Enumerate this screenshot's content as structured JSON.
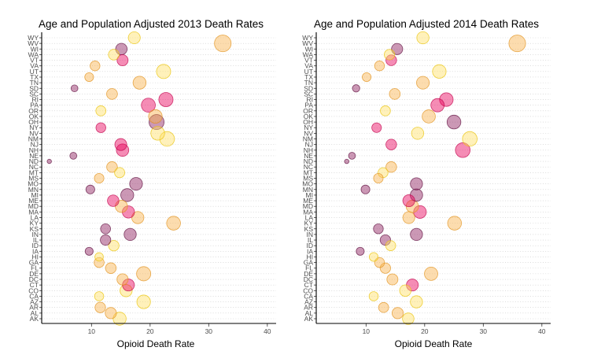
{
  "chart_data": [
    {
      "type": "scatter",
      "title": "Age and Population Adjusted 2013 Death Rates",
      "xlabel": "Opioid Death Rate",
      "ylabel": "",
      "xlim": [
        1.5,
        41.5
      ],
      "xticks": [
        10,
        20,
        30,
        40
      ],
      "grid": "dotted horizontal lines at each state",
      "legend": "none",
      "categories": [
        "AK",
        "AL",
        "AR",
        "AZ",
        "CA",
        "CO",
        "CT",
        "DC",
        "DE",
        "FL",
        "GA",
        "HI",
        "IA",
        "ID",
        "IL",
        "IN",
        "KS",
        "KY",
        "LA",
        "MA",
        "MD",
        "ME",
        "MI",
        "MN",
        "MO",
        "MS",
        "MT",
        "NC",
        "ND",
        "NE",
        "NH",
        "NJ",
        "NM",
        "NV",
        "NY",
        "OH",
        "OK",
        "OR",
        "PA",
        "RI",
        "SC",
        "SD",
        "TN",
        "TX",
        "UT",
        "VA",
        "VT",
        "WA",
        "WI",
        "WV",
        "WY"
      ],
      "points": [
        {
          "state": "AK",
          "x": 14.8,
          "size": 16.6,
          "color": "#ffe066"
        },
        {
          "state": "AL",
          "x": 13.3,
          "size": 14.3,
          "color": "#f8b24c"
        },
        {
          "state": "AR",
          "x": 11.5,
          "size": 13.4,
          "color": "#f8b24c"
        },
        {
          "state": "AZ",
          "x": 18.9,
          "size": 17.3,
          "color": "#ffe066"
        },
        {
          "state": "CA",
          "x": 11.3,
          "size": 11.7,
          "color": "#ffe066"
        },
        {
          "state": "CO",
          "x": 15.9,
          "size": 15.5,
          "color": "#ffe066"
        },
        {
          "state": "CT",
          "x": 16.3,
          "size": 15.2,
          "color": "#e8005a"
        },
        {
          "state": "DC",
          "x": 15.3,
          "size": 14.3,
          "color": "#f8b24c"
        },
        {
          "state": "DE",
          "x": 18.9,
          "size": 18.1,
          "color": "#f8b24c"
        },
        {
          "state": "FL",
          "x": 13.3,
          "size": 13.6,
          "color": "#f8b24c"
        },
        {
          "state": "GA",
          "x": 11.3,
          "size": 12.7,
          "color": "#f8b24c"
        },
        {
          "state": "HI",
          "x": 11.3,
          "size": 10.8,
          "color": "#ffe066"
        },
        {
          "state": "IA",
          "x": 9.6,
          "size": 10.2,
          "color": "#8b1a5b"
        },
        {
          "state": "ID",
          "x": 13.8,
          "size": 13.4,
          "color": "#ffe066"
        },
        {
          "state": "IL",
          "x": 12.4,
          "size": 13.3,
          "color": "#8b1a5b"
        },
        {
          "state": "IN",
          "x": 16.6,
          "size": 15.5,
          "color": "#8b1a5b"
        },
        {
          "state": "KS",
          "x": 12.4,
          "size": 12.7,
          "color": "#8b1a5b"
        },
        {
          "state": "KY",
          "x": 24.0,
          "size": 17.6,
          "color": "#f8b24c"
        },
        {
          "state": "LA",
          "x": 17.9,
          "size": 15.5,
          "color": "#f8b24c"
        },
        {
          "state": "MA",
          "x": 16.3,
          "size": 15.5,
          "color": "#e8005a"
        },
        {
          "state": "MD",
          "x": 15.1,
          "size": 15.5,
          "color": "#f8b24c"
        },
        {
          "state": "ME",
          "x": 13.7,
          "size": 14.6,
          "color": "#e8005a"
        },
        {
          "state": "MI",
          "x": 16.1,
          "size": 16.5,
          "color": "#8b1a5b"
        },
        {
          "state": "MN",
          "x": 9.8,
          "size": 11.2,
          "color": "#8b1a5b"
        },
        {
          "state": "MO",
          "x": 17.6,
          "size": 16.3,
          "color": "#8b1a5b"
        },
        {
          "state": "MS",
          "x": 11.3,
          "size": 12.2,
          "color": "#f8b24c"
        },
        {
          "state": "MT",
          "x": 14.8,
          "size": 13.0,
          "color": "#ffe066"
        },
        {
          "state": "NC",
          "x": 13.5,
          "size": 13.6,
          "color": "#f8b24c"
        },
        {
          "state": "ND",
          "x": 2.8,
          "size": 5.5,
          "color": "#8b1a5b"
        },
        {
          "state": "NE",
          "x": 6.9,
          "size": 8.8,
          "color": "#8b1a5b"
        },
        {
          "state": "NH",
          "x": 15.3,
          "size": 15.8,
          "color": "#e8005a"
        },
        {
          "state": "NJ",
          "x": 15.0,
          "size": 15.2,
          "color": "#e8005a"
        },
        {
          "state": "NM",
          "x": 22.9,
          "size": 18.7,
          "color": "#ffe066"
        },
        {
          "state": "NV",
          "x": 21.3,
          "size": 17.5,
          "color": "#ffe066"
        },
        {
          "state": "NY",
          "x": 11.6,
          "size": 12.5,
          "color": "#e8005a"
        },
        {
          "state": "OH",
          "x": 21.1,
          "size": 19.1,
          "color": "#8b1a5b"
        },
        {
          "state": "OK",
          "x": 20.9,
          "size": 17.3,
          "color": "#f8b24c"
        },
        {
          "state": "OR",
          "x": 11.6,
          "size": 12.8,
          "color": "#ffe066"
        },
        {
          "state": "PA",
          "x": 19.7,
          "size": 17.8,
          "color": "#e8005a"
        },
        {
          "state": "RI",
          "x": 22.7,
          "size": 18.1,
          "color": "#e8005a"
        },
        {
          "state": "SC",
          "x": 13.5,
          "size": 13.8,
          "color": "#f8b24c"
        },
        {
          "state": "SD",
          "x": 7.1,
          "size": 8.8,
          "color": "#8b1a5b"
        },
        {
          "state": "TN",
          "x": 18.2,
          "size": 16.5,
          "color": "#f8b24c"
        },
        {
          "state": "TX",
          "x": 9.6,
          "size": 11.2,
          "color": "#f8b24c"
        },
        {
          "state": "UT",
          "x": 22.3,
          "size": 18.1,
          "color": "#ffe066"
        },
        {
          "state": "VA",
          "x": 10.6,
          "size": 12.5,
          "color": "#f8b24c"
        },
        {
          "state": "VT",
          "x": 15.3,
          "size": 14.1,
          "color": "#e8005a"
        },
        {
          "state": "WA",
          "x": 13.8,
          "size": 13.6,
          "color": "#ffe066"
        },
        {
          "state": "WI",
          "x": 15.1,
          "size": 14.6,
          "color": "#8b1a5b"
        },
        {
          "state": "WV",
          "x": 32.4,
          "size": 21.2,
          "color": "#f8b24c"
        },
        {
          "state": "WY",
          "x": 17.3,
          "size": 15.2,
          "color": "#ffe066"
        }
      ]
    },
    {
      "type": "scatter",
      "title": "Age and Population Adjusted 2014 Death Rates",
      "xlabel": "Opioid Death Rate",
      "ylabel": "",
      "xlim": [
        1.5,
        41.5
      ],
      "xticks": [
        10,
        20,
        30,
        40
      ],
      "grid": "dotted horizontal lines at each state",
      "legend": "none",
      "categories": [
        "AK",
        "AL",
        "AR",
        "AZ",
        "CA",
        "CO",
        "CT",
        "DC",
        "DE",
        "FL",
        "GA",
        "HI",
        "IA",
        "ID",
        "IL",
        "IN",
        "KS",
        "KY",
        "LA",
        "MA",
        "MD",
        "ME",
        "MI",
        "MN",
        "MO",
        "MS",
        "MT",
        "NC",
        "ND",
        "NE",
        "NH",
        "NJ",
        "NM",
        "NV",
        "NY",
        "OH",
        "OK",
        "OR",
        "PA",
        "RI",
        "SC",
        "SD",
        "TN",
        "TX",
        "UT",
        "VA",
        "VT",
        "WA",
        "WI",
        "WV",
        "WY"
      ],
      "points": [
        {
          "state": "AK",
          "x": 17.2,
          "size": 14.6,
          "color": "#ffe066"
        },
        {
          "state": "AL",
          "x": 15.4,
          "size": 14.3,
          "color": "#f8b24c"
        },
        {
          "state": "AR",
          "x": 13.0,
          "size": 12.8,
          "color": "#f8b24c"
        },
        {
          "state": "AZ",
          "x": 18.6,
          "size": 15.5,
          "color": "#ffe066"
        },
        {
          "state": "CA",
          "x": 11.3,
          "size": 11.7,
          "color": "#ffe066"
        },
        {
          "state": "CO",
          "x": 16.7,
          "size": 14.6,
          "color": "#ffe066"
        },
        {
          "state": "CT",
          "x": 17.9,
          "size": 15.2,
          "color": "#e8005a"
        },
        {
          "state": "DC",
          "x": 14.5,
          "size": 14.1,
          "color": "#f8b24c"
        },
        {
          "state": "DE",
          "x": 21.1,
          "size": 17.0,
          "color": "#f8b24c"
        },
        {
          "state": "FL",
          "x": 13.3,
          "size": 13.3,
          "color": "#f8b24c"
        },
        {
          "state": "GA",
          "x": 12.3,
          "size": 12.7,
          "color": "#f8b24c"
        },
        {
          "state": "HI",
          "x": 11.3,
          "size": 11.2,
          "color": "#ffe066"
        },
        {
          "state": "IA",
          "x": 9.0,
          "size": 10.2,
          "color": "#8b1a5b"
        },
        {
          "state": "ID",
          "x": 14.2,
          "size": 12.8,
          "color": "#ffe066"
        },
        {
          "state": "IL",
          "x": 13.3,
          "size": 13.3,
          "color": "#8b1a5b"
        },
        {
          "state": "IN",
          "x": 18.6,
          "size": 15.5,
          "color": "#8b1a5b"
        },
        {
          "state": "KS",
          "x": 12.1,
          "size": 12.5,
          "color": "#8b1a5b"
        },
        {
          "state": "KY",
          "x": 25.1,
          "size": 17.6,
          "color": "#f8b24c"
        },
        {
          "state": "LA",
          "x": 17.3,
          "size": 15.2,
          "color": "#f8b24c"
        },
        {
          "state": "MA",
          "x": 19.2,
          "size": 16.2,
          "color": "#e8005a"
        },
        {
          "state": "MD",
          "x": 17.9,
          "size": 15.8,
          "color": "#f8b24c"
        },
        {
          "state": "ME",
          "x": 17.3,
          "size": 15.2,
          "color": "#e8005a"
        },
        {
          "state": "MI",
          "x": 18.6,
          "size": 15.8,
          "color": "#8b1a5b"
        },
        {
          "state": "MN",
          "x": 9.9,
          "size": 11.2,
          "color": "#8b1a5b"
        },
        {
          "state": "MO",
          "x": 18.6,
          "size": 15.5,
          "color": "#8b1a5b"
        },
        {
          "state": "MS",
          "x": 12.1,
          "size": 12.2,
          "color": "#f8b24c"
        },
        {
          "state": "MT",
          "x": 12.9,
          "size": 12.7,
          "color": "#ffe066"
        },
        {
          "state": "NC",
          "x": 14.3,
          "size": 13.6,
          "color": "#f8b24c"
        },
        {
          "state": "ND",
          "x": 6.7,
          "size": 5.6,
          "color": "#8b1a5b"
        },
        {
          "state": "NE",
          "x": 7.6,
          "size": 8.8,
          "color": "#8b1a5b"
        },
        {
          "state": "NH",
          "x": 26.5,
          "size": 18.7,
          "color": "#e8005a"
        },
        {
          "state": "NJ",
          "x": 14.3,
          "size": 13.6,
          "color": "#e8005a"
        },
        {
          "state": "NM",
          "x": 27.7,
          "size": 18.7,
          "color": "#ffe066"
        },
        {
          "state": "NV",
          "x": 18.8,
          "size": 15.5,
          "color": "#ffe066"
        },
        {
          "state": "NY",
          "x": 11.8,
          "size": 12.2,
          "color": "#e8005a"
        },
        {
          "state": "OH",
          "x": 25.0,
          "size": 17.6,
          "color": "#8b1a5b"
        },
        {
          "state": "OK",
          "x": 20.7,
          "size": 16.8,
          "color": "#f8b24c"
        },
        {
          "state": "OR",
          "x": 13.3,
          "size": 12.8,
          "color": "#ffe066"
        },
        {
          "state": "PA",
          "x": 22.2,
          "size": 17.0,
          "color": "#e8005a"
        },
        {
          "state": "RI",
          "x": 23.7,
          "size": 17.3,
          "color": "#e8005a"
        },
        {
          "state": "SC",
          "x": 14.9,
          "size": 13.8,
          "color": "#f8b24c"
        },
        {
          "state": "SD",
          "x": 8.3,
          "size": 9.4,
          "color": "#8b1a5b"
        },
        {
          "state": "TN",
          "x": 19.7,
          "size": 16.2,
          "color": "#f8b24c"
        },
        {
          "state": "TX",
          "x": 10.1,
          "size": 11.2,
          "color": "#f8b24c"
        },
        {
          "state": "UT",
          "x": 22.5,
          "size": 17.3,
          "color": "#ffe066"
        },
        {
          "state": "VA",
          "x": 12.3,
          "size": 12.5,
          "color": "#f8b24c"
        },
        {
          "state": "VT",
          "x": 14.3,
          "size": 13.6,
          "color": "#e8005a"
        },
        {
          "state": "WA",
          "x": 14.0,
          "size": 13.3,
          "color": "#ffe066"
        },
        {
          "state": "WI",
          "x": 15.3,
          "size": 14.3,
          "color": "#8b1a5b"
        },
        {
          "state": "WV",
          "x": 35.8,
          "size": 21.2,
          "color": "#f8b24c"
        },
        {
          "state": "WY",
          "x": 19.7,
          "size": 15.5,
          "color": "#ffe066"
        }
      ]
    }
  ]
}
